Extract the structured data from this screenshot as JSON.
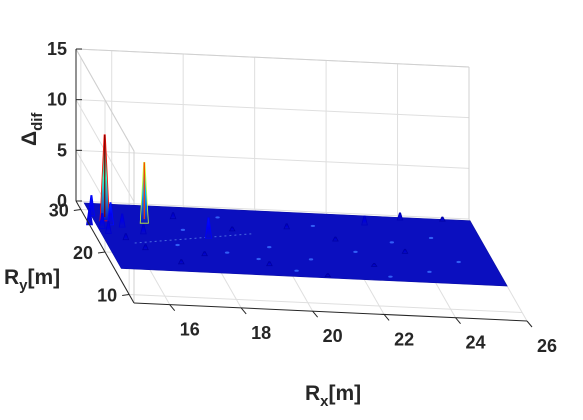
{
  "chart_data": {
    "type": "surface3d",
    "xlabel": {
      "main": "R",
      "sub": "x",
      "unit": "[m]"
    },
    "ylabel": {
      "main": "R",
      "sub": "y",
      "unit": "[m]"
    },
    "zlabel": {
      "main": "Δ",
      "sub": "dif"
    },
    "xlim": [
      15,
      26
    ],
    "ylim": [
      8,
      32
    ],
    "zlim": [
      0,
      15
    ],
    "x_ticks": [
      16,
      18,
      20,
      22,
      24,
      26
    ],
    "y_ticks": [
      10,
      20,
      30
    ],
    "z_ticks": [
      0,
      5,
      10,
      15
    ],
    "x_tick_labels": [
      "16",
      "18",
      "20",
      "22",
      "24",
      "26"
    ],
    "y_tick_labels": [
      "10",
      "20",
      "30"
    ],
    "z_tick_labels": [
      "0",
      "5",
      "10",
      "15"
    ],
    "grid": true,
    "base_value": 0,
    "colormap": [
      "#00008F",
      "#0000FF",
      "#00FFFF",
      "#FFFF00",
      "#FF0000",
      "#800000"
    ],
    "peaks": [
      {
        "x": 15.5,
        "y": 27.5,
        "z": 8.5
      },
      {
        "x": 16.6,
        "y": 27.4,
        "z": 6.0
      },
      {
        "x": 15.2,
        "y": 28.6,
        "z": 2.0
      },
      {
        "x": 15.6,
        "y": 26.6,
        "z": 2.2
      },
      {
        "x": 15.9,
        "y": 26.2,
        "z": 1.3
      },
      {
        "x": 15.3,
        "y": 25.6,
        "z": 1.5
      },
      {
        "x": 15.4,
        "y": 24.5,
        "z": 1.2
      },
      {
        "x": 15.0,
        "y": 26.4,
        "z": 1.6
      },
      {
        "x": 16.4,
        "y": 24.8,
        "z": 0.9
      },
      {
        "x": 15.8,
        "y": 23.2,
        "z": 0.6
      },
      {
        "x": 18.2,
        "y": 24.5,
        "z": 2.0
      },
      {
        "x": 17.5,
        "y": 28.8,
        "z": 0.6
      },
      {
        "x": 16.2,
        "y": 21.0,
        "z": 0.5
      },
      {
        "x": 17.8,
        "y": 20.2,
        "z": 0.4
      },
      {
        "x": 19.0,
        "y": 26.5,
        "z": 0.4
      },
      {
        "x": 20.6,
        "y": 27.6,
        "z": 0.5
      },
      {
        "x": 21.8,
        "y": 25.2,
        "z": 0.4
      },
      {
        "x": 22.9,
        "y": 29.4,
        "z": 0.9
      },
      {
        "x": 24.0,
        "y": 31.0,
        "z": 0.7
      },
      {
        "x": 25.2,
        "y": 31.2,
        "z": 0.4
      },
      {
        "x": 23.6,
        "y": 23.0,
        "z": 0.4
      },
      {
        "x": 19.5,
        "y": 18.5,
        "z": 0.4
      },
      {
        "x": 21.0,
        "y": 16.5,
        "z": 0.3
      },
      {
        "x": 17.0,
        "y": 18.0,
        "z": 0.4
      },
      {
        "x": 22.5,
        "y": 19.5,
        "z": 0.3
      }
    ]
  }
}
